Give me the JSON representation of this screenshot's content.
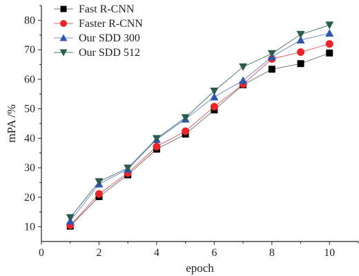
{
  "chart_data": {
    "type": "line",
    "title": "",
    "xlabel": "epoch",
    "ylabel": "mPA /%",
    "xlim": [
      0,
      11
    ],
    "ylim": [
      5,
      85
    ],
    "x_ticks": [
      0,
      2,
      4,
      6,
      8,
      10
    ],
    "y_ticks": [
      10,
      20,
      30,
      40,
      50,
      60,
      70,
      80
    ],
    "grid": false,
    "legend_position": "top-left",
    "x": [
      1,
      2,
      3,
      4,
      5,
      6,
      7,
      8,
      9,
      10
    ],
    "series": [
      {
        "name": "Fast R-CNN",
        "marker": "square",
        "color": "#000000",
        "line_color": "#777777",
        "values": [
          10.2,
          20.2,
          27.6,
          36.3,
          41.4,
          49.6,
          58.1,
          63.4,
          65.3,
          68.9
        ]
      },
      {
        "name": "Faster R-CNN",
        "marker": "circle",
        "color": "#e8262a",
        "line_color": "#e06060",
        "values": [
          10.5,
          21.1,
          28.2,
          37.2,
          42.4,
          50.7,
          58.3,
          66.9,
          69.2,
          72.0
        ]
      },
      {
        "name": "Our SDD 300",
        "marker": "triangle-up",
        "color": "#2f56b0",
        "line_color": "#6f8fd0",
        "values": [
          11.9,
          24.5,
          29.5,
          39.6,
          46.5,
          54.0,
          59.6,
          67.6,
          73.3,
          75.6
        ]
      },
      {
        "name": "Our SDD 512",
        "marker": "triangle-down",
        "color": "#2b5c4f",
        "line_color": "#4a7a6c",
        "values": [
          13.1,
          25.3,
          29.9,
          39.9,
          47.0,
          56.0,
          64.2,
          68.7,
          75.2,
          78.4
        ]
      }
    ]
  }
}
